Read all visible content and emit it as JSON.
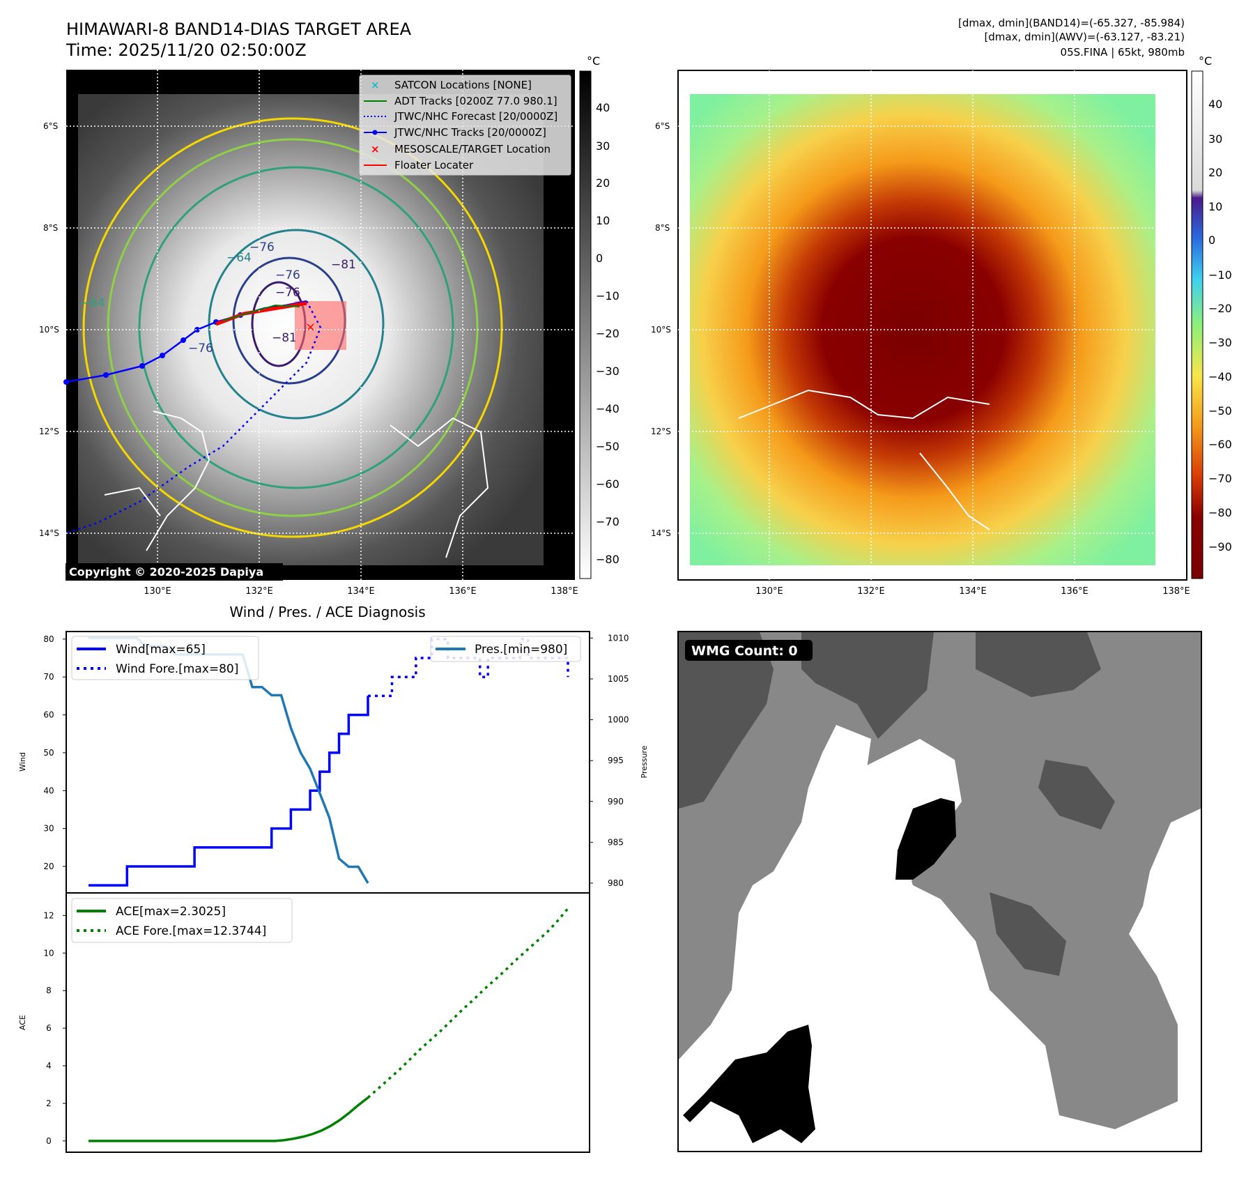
{
  "satellite": {
    "title": "HIMAWARI-8 BAND14-DIAS TARGET AREA",
    "time": "Time: 2025/11/20 02:50:00Z",
    "info_line1": "[dmax, dmin](BAND14)=(-65.327, -85.984)",
    "info_line2": "[dmax, dmin](AWV)=(-63.127, -83.21)",
    "info_line3": "05S.FINA | 65kt, 980mb",
    "copyright": "Copyright © 2020-2025 Dapiya",
    "lat_labels": [
      "6°S",
      "8°S",
      "10°S",
      "12°S",
      "14°S"
    ],
    "lon_labels": [
      "130°E",
      "132°E",
      "134°E",
      "136°E",
      "138°E"
    ],
    "cbar_unit": "°C",
    "cbar_gray_ticks": [
      "40",
      "30",
      "20",
      "10",
      "0",
      "−10",
      "−20",
      "−30",
      "−40",
      "−50",
      "−60",
      "−70",
      "−80"
    ],
    "cbar_color_ticks": [
      "40",
      "30",
      "20",
      "10",
      "0",
      "−10",
      "−20",
      "−30",
      "−40",
      "−50",
      "−60",
      "−70",
      "−80",
      "−90"
    ],
    "contour_labels": [
      "−76",
      "−64",
      "−76",
      "−81",
      "−76",
      "−81",
      "−76",
      "−64"
    ],
    "legend": [
      {
        "label": "SATCON Locations [NONE]",
        "color": "#17becf",
        "style": "x"
      },
      {
        "label": "ADT Tracks [0200Z 77.0 980.1]",
        "color": "#008000",
        "style": "solid"
      },
      {
        "label": "JTWC/NHC Forecast [20/0000Z]",
        "color": "#0000ff",
        "style": "dotted"
      },
      {
        "label": "JTWC/NHC Tracks [20/0000Z]",
        "color": "#0000ff",
        "style": "solid-dot"
      },
      {
        "label": "MESOSCALE/TARGET Location",
        "color": "#ff0000",
        "style": "x"
      },
      {
        "label": "Floater Locater",
        "color": "#ff0000",
        "style": "solid"
      }
    ]
  },
  "diagnosis": {
    "title": "Wind / Pres. / ACE Diagnosis",
    "wind_ylabel": "Wind",
    "pres_ylabel": "Pressure",
    "ace_ylabel": "ACE",
    "wind_legend": [
      "Wind[max=65]",
      "Wind Fore.[max=80]"
    ],
    "pres_legend": [
      "Pres.[min=980]"
    ],
    "ace_legend": [
      "ACE[max=2.3025]",
      "ACE Fore.[max=12.3744]"
    ]
  },
  "wmg": {
    "label": "WMG Count: 0"
  },
  "colors": {
    "wind": "#0000ff",
    "pressure": "#1f77b4",
    "ace": "#008000",
    "accent_red": "#ff0000"
  },
  "chart_data": [
    {
      "type": "line",
      "title": "Wind / Pres. / ACE Diagnosis",
      "ylabel": "Wind",
      "ylim": [
        13,
        82
      ],
      "yticks": [
        20,
        30,
        40,
        50,
        60,
        70,
        80
      ],
      "series": [
        {
          "name": "Wind[max=65]",
          "style": "solid",
          "values": [
            15,
            15,
            15,
            15,
            20,
            20,
            20,
            20,
            20,
            20,
            20,
            25,
            25,
            25,
            25,
            25,
            25,
            25,
            25,
            30,
            30,
            35,
            35,
            40,
            45,
            50,
            55,
            60,
            60,
            65
          ]
        },
        {
          "name": "Wind Fore.[max=80]",
          "style": "dotted",
          "values": [
            65,
            65,
            65,
            70,
            70,
            70,
            75,
            75,
            80,
            80,
            75,
            75,
            75,
            75,
            70,
            75,
            75,
            75,
            75,
            80,
            75,
            75,
            75,
            75,
            75,
            70
          ]
        }
      ]
    },
    {
      "type": "line",
      "ylabel": "Pressure",
      "ylim": [
        978.8,
        1010.8
      ],
      "yticks": [
        980,
        985,
        990,
        995,
        1000,
        1005,
        1010
      ],
      "series": [
        {
          "name": "Pres.[min=980]",
          "style": "solid",
          "values": [
            1010,
            1010,
            1010,
            1010,
            1010,
            1010,
            1009,
            1009,
            1009,
            1008,
            1008,
            1008,
            1008,
            1008,
            1008,
            1008,
            1008,
            1004,
            1004,
            1003,
            1003,
            999,
            996,
            994,
            991,
            988,
            983,
            982,
            982,
            980
          ]
        }
      ]
    },
    {
      "type": "line",
      "ylabel": "ACE",
      "ylim": [
        -0.6,
        13.2
      ],
      "yticks": [
        0,
        2,
        4,
        6,
        8,
        10,
        12
      ],
      "series": [
        {
          "name": "ACE[max=2.3025]",
          "style": "solid",
          "values": [
            0,
            0,
            0,
            0,
            0,
            0,
            0,
            0,
            0,
            0,
            0,
            0,
            0,
            0,
            0,
            0,
            0,
            0,
            0,
            0,
            0,
            0.04,
            0.12,
            0.22,
            0.36,
            0.55,
            0.8,
            1.12,
            1.5,
            1.92,
            2.3025
          ]
        },
        {
          "name": "ACE Fore.[max=12.3744]",
          "style": "dotted",
          "values": [
            2.3025,
            2.8,
            3.3,
            3.8,
            4.35,
            4.9,
            5.4,
            5.9,
            6.45,
            7.0,
            7.5,
            8.05,
            8.55,
            9.05,
            9.6,
            10.1,
            10.6,
            11.1,
            11.7,
            12.3744
          ]
        }
      ]
    }
  ]
}
